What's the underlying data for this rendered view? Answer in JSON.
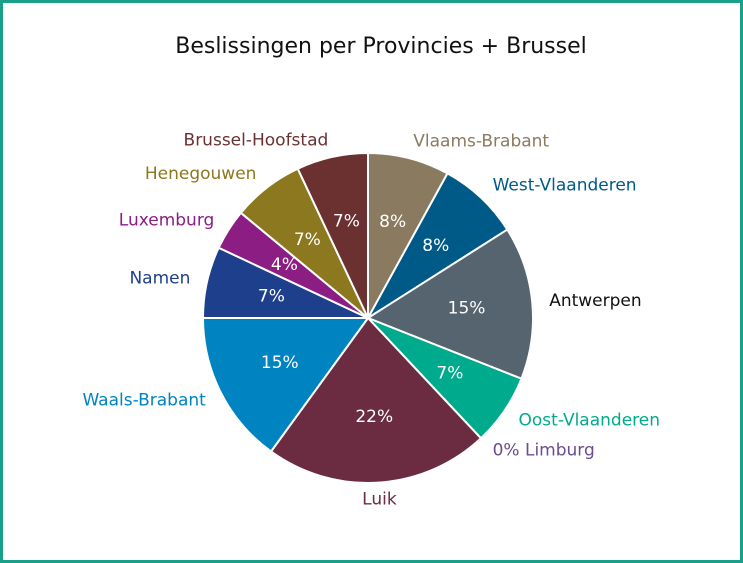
{
  "chart_data": {
    "type": "pie",
    "title": "Beslissingen per Provincies + Brussel",
    "categories": [
      "Vlaams-Brabant",
      "West-Vlaanderen",
      "Antwerpen",
      "Oost-Vlaanderen",
      "Limburg",
      "Luik",
      "Waals-Brabant",
      "Namen",
      "Luxemburg",
      "Henegouwen",
      "Brussel-Hoofstad"
    ],
    "values": [
      8,
      8,
      15,
      7,
      0,
      22,
      15,
      7,
      4,
      7,
      7
    ],
    "value_labels": [
      "8%",
      "8%",
      "15%",
      "7%",
      "0%",
      "22%",
      "15%",
      "7%",
      "4%",
      "7%",
      "7%"
    ],
    "colors": [
      "#8a7a5f",
      "#005a87",
      "#56646f",
      "#00aa8c",
      "#6b4c8c",
      "#6b2c42",
      "#0083c1",
      "#1d3f8c",
      "#8c1d82",
      "#8c781e",
      "#6b3030"
    ],
    "label_colors": [
      "#8a7a5f",
      "#005a87",
      "#111111",
      "#00aa8c",
      "#6b4c8c",
      "#6b2c42",
      "#0083c1",
      "#1d3f8c",
      "#8c1d82",
      "#8c781e",
      "#6b3030"
    ]
  }
}
